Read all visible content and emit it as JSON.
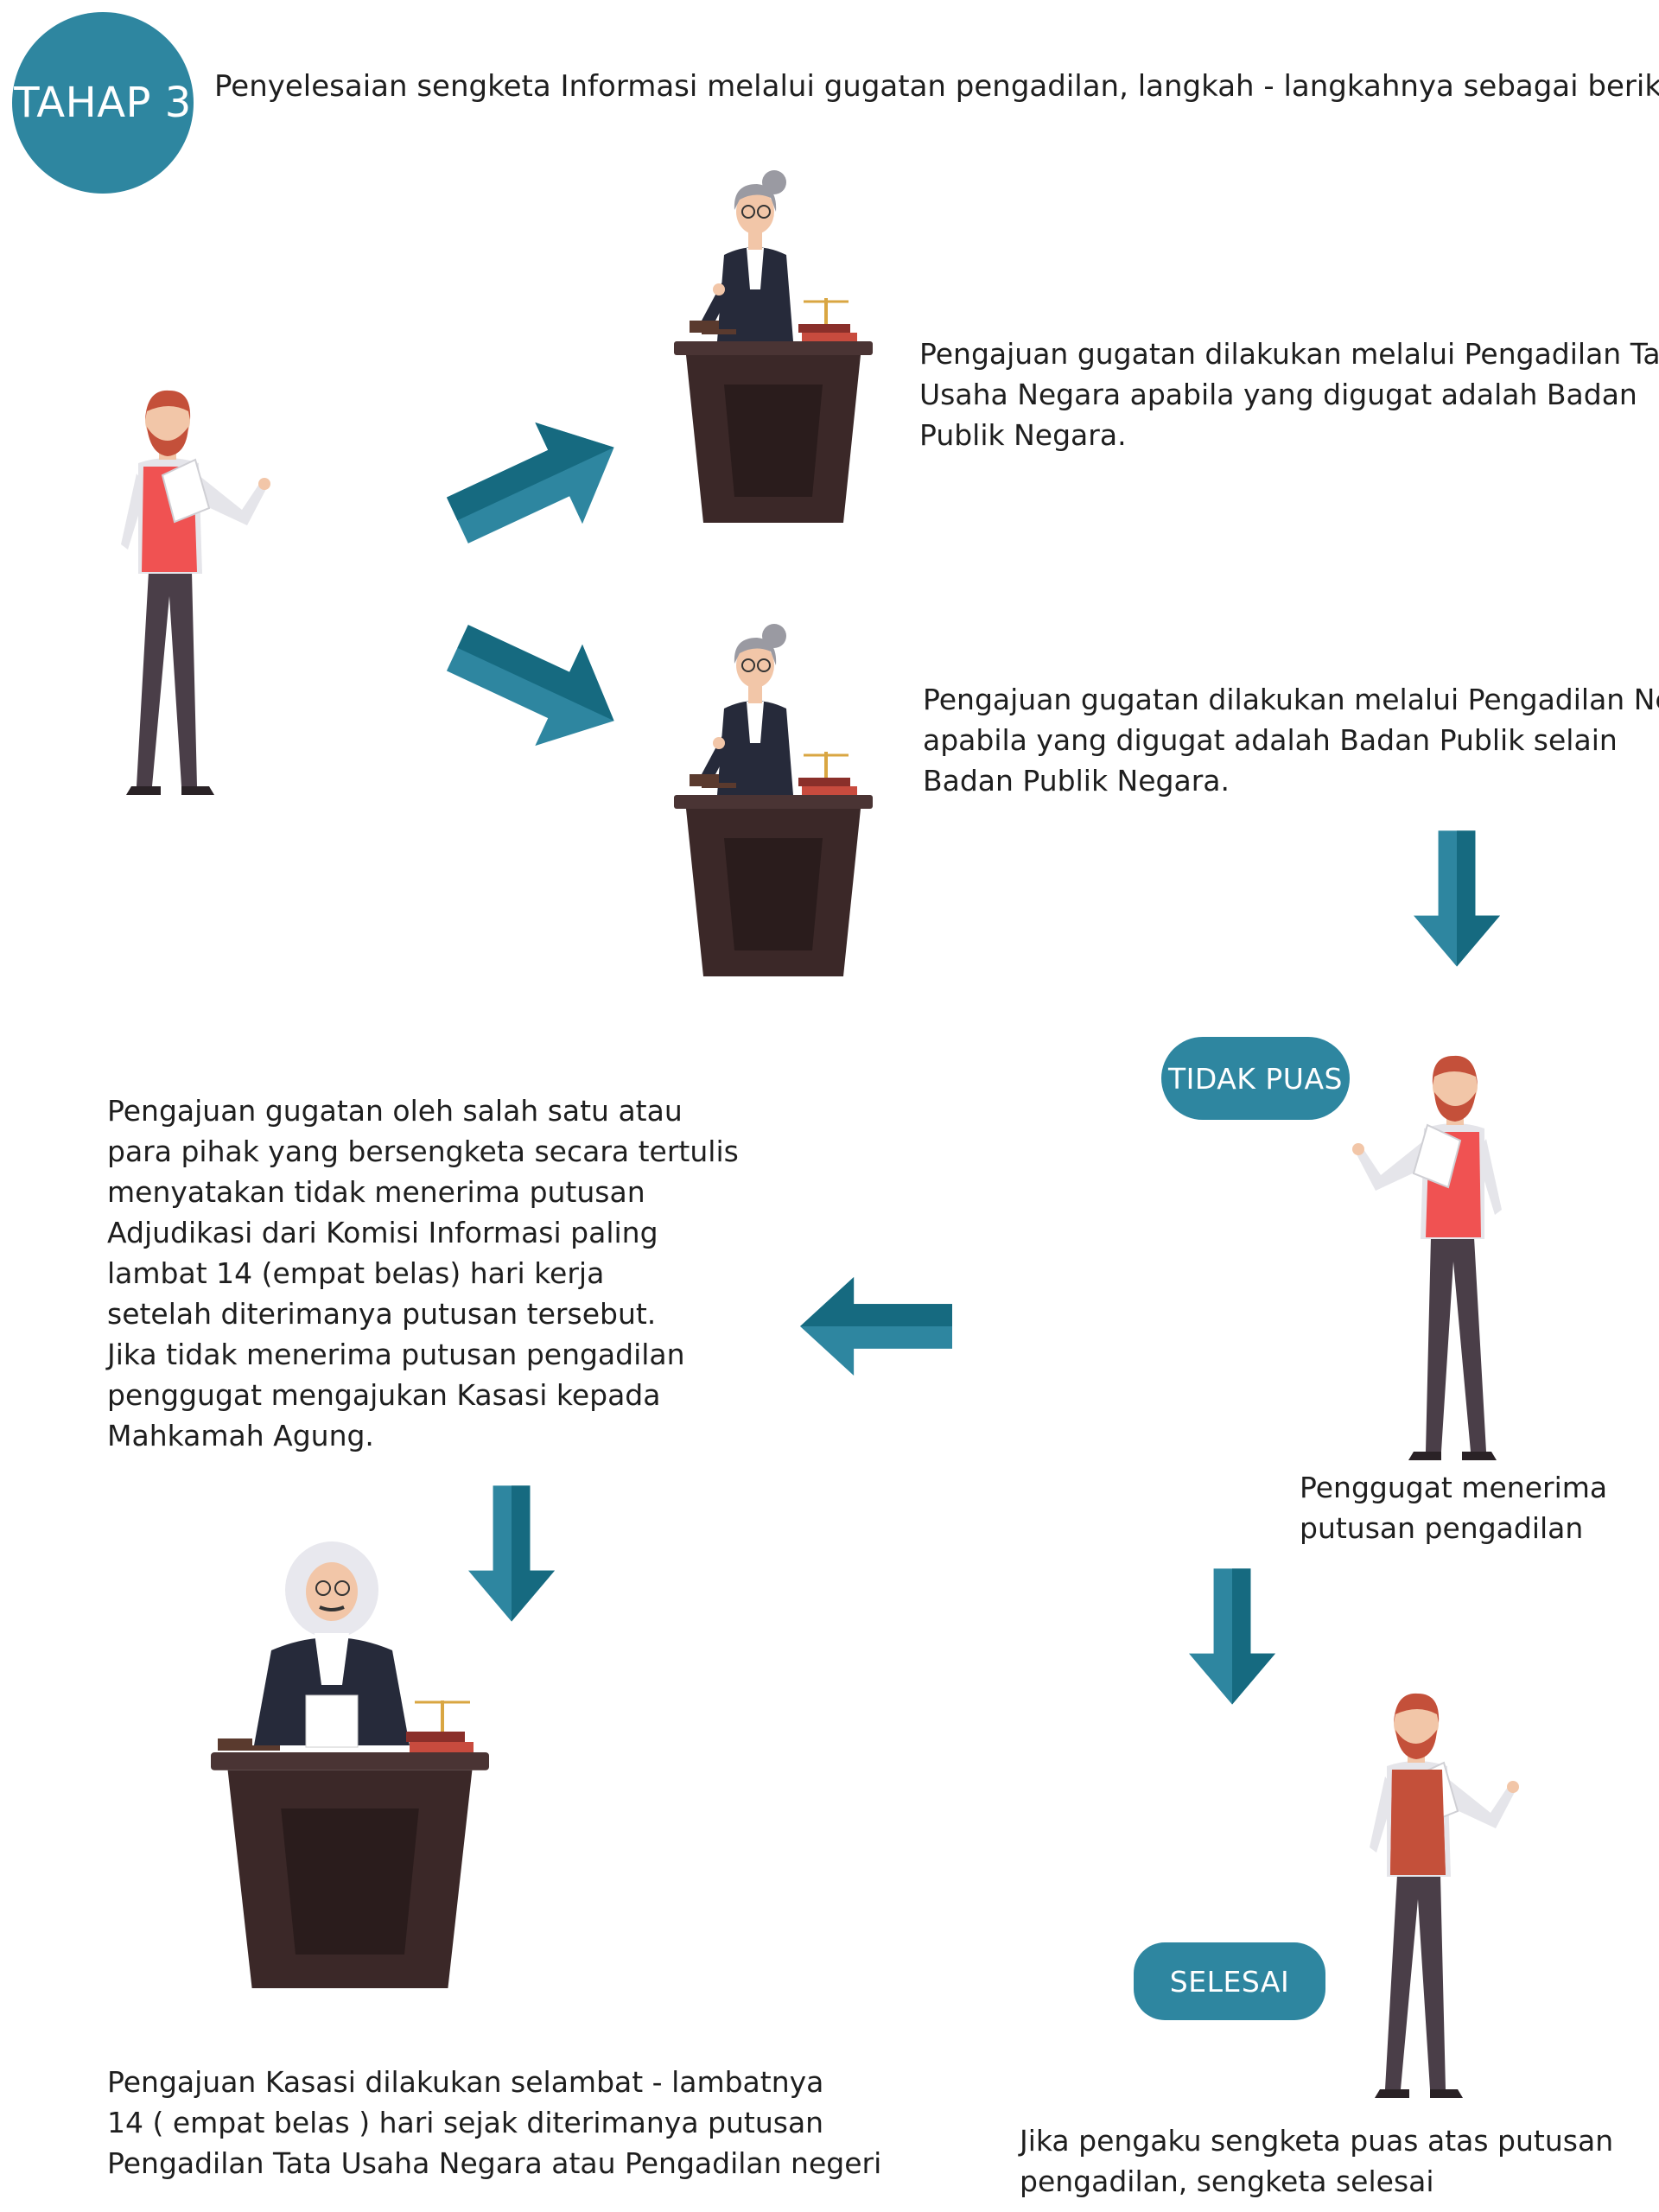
{
  "badge": {
    "label": "TAHAP 3"
  },
  "intro": "Penyelesaian sengketa Informasi melalui gugatan pengadilan, langkah - langkahnya sebagai berikut :",
  "step_ptun": [
    "Pengajuan gugatan dilakukan melalui Pengadilan Tata",
    "Usaha Negara apabila yang digugat adalah Badan",
    "Publik Negara."
  ],
  "step_pn": [
    "Pengajuan gugatan dilakukan melalui Pengadilan Negeri",
    "apabila yang digugat adalah Badan Publik selain",
    "Badan Publik Negara."
  ],
  "tidak_puas": "TIDAK PUAS",
  "step_gugatan": [
    "Pengajuan gugatan oleh salah satu atau",
    "para pihak yang bersengketa secara tertulis",
    "menyatakan tidak menerima putusan",
    "Adjudikasi dari Komisi Informasi paling",
    "lambat 14 (empat belas) hari kerja",
    "setelah diterimanya putusan tersebut.",
    "Jika tidak menerima putusan pengadilan",
    "penggugat mengajukan Kasasi kepada",
    "Mahkamah Agung."
  ],
  "penggugat": [
    "Penggugat menerima",
    "putusan pengadilan"
  ],
  "selesai": "SELESAI",
  "step_kasasi": [
    "Pengajuan Kasasi dilakukan selambat - lambatnya",
    "14 ( empat belas ) hari sejak diterimanya putusan",
    "Pengadilan Tata Usaha Negara atau Pengadilan negeri"
  ],
  "final": [
    "Jika pengaku sengketa puas atas putusan",
    "pengadilan, sengketa selesai"
  ],
  "colors": {
    "teal": "#2e86a0",
    "teal_dark": "#166a80",
    "podium": "#3b2828",
    "vest_red": "#f05252",
    "vest_rust": "#c4503a",
    "trousers": "#4a3e48"
  }
}
